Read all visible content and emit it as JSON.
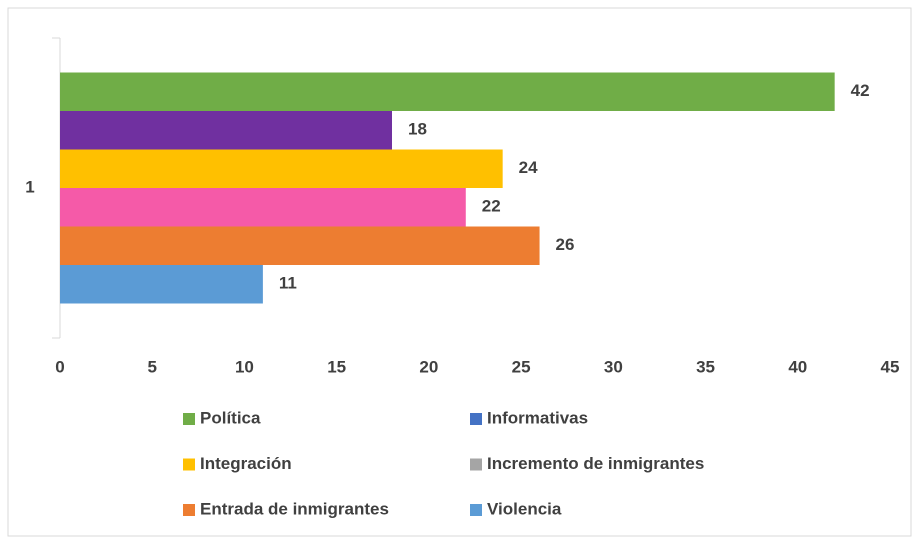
{
  "chart_data": {
    "type": "hbar",
    "categories": [
      "1"
    ],
    "series": [
      {
        "name": "Política",
        "color": "#70ad47",
        "legend_color": "#70ad47",
        "values": [
          42
        ]
      },
      {
        "name": "Informativas",
        "color": "#7030a0",
        "legend_color": "#4472c4",
        "values": [
          18
        ]
      },
      {
        "name": "Integración",
        "color": "#ffc000",
        "legend_color": "#ffc000",
        "values": [
          24
        ]
      },
      {
        "name": "Incremento de inmigrantes",
        "color": "#f55aa8",
        "legend_color": "#a5a5a5",
        "values": [
          22
        ]
      },
      {
        "name": "Entrada de inmigrantes",
        "color": "#ed7d31",
        "legend_color": "#ed7d31",
        "values": [
          26
        ]
      },
      {
        "name": "Violencia",
        "color": "#5b9bd5",
        "legend_color": "#5b9bd5",
        "values": [
          11
        ]
      }
    ],
    "xlim": [
      0,
      45
    ],
    "xticks": [
      0,
      5,
      10,
      15,
      20,
      25,
      30,
      35,
      40,
      45
    ],
    "data_labels": true,
    "legend": "bottom"
  }
}
